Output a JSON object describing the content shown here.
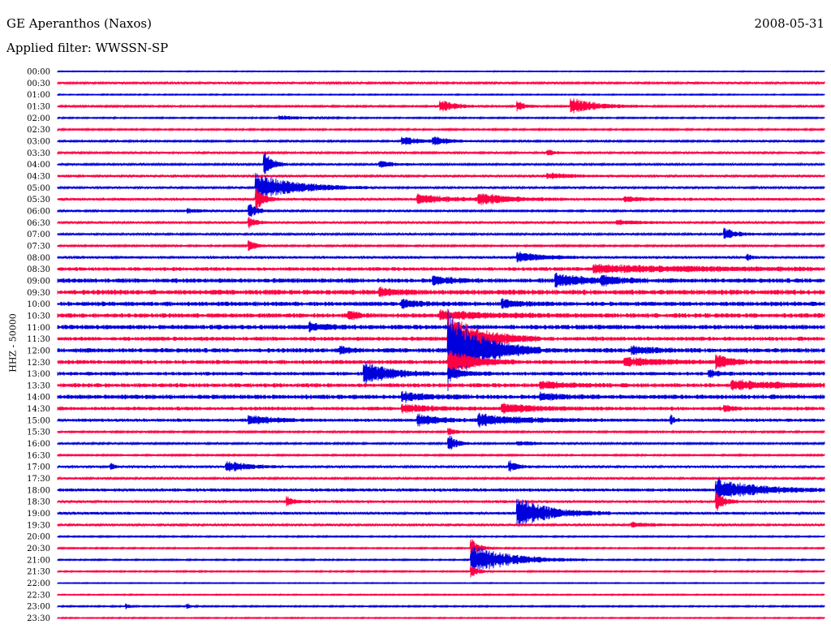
{
  "header": {
    "station": "GE Aperanthos (Naxos)",
    "date": "2008-05-31",
    "filter": "Applied filter: WWSSN-SP"
  },
  "chart_data": {
    "type": "line",
    "title": "GE Aperanthos (Naxos)",
    "ylabel": "HHZ - 50000",
    "xlabel": "",
    "trace_colors": [
      "#0000dd",
      "#ff0044"
    ],
    "row_labels": [
      "00:00",
      "00:30",
      "01:00",
      "01:30",
      "02:00",
      "02:30",
      "03:00",
      "03:30",
      "04:00",
      "04:30",
      "05:00",
      "05:30",
      "06:00",
      "06:30",
      "07:00",
      "07:30",
      "08:00",
      "08:30",
      "09:00",
      "09:30",
      "10:00",
      "10:30",
      "11:00",
      "11:30",
      "12:00",
      "12:30",
      "13:00",
      "13:30",
      "14:00",
      "14:30",
      "15:00",
      "15:30",
      "16:00",
      "16:30",
      "17:00",
      "17:30",
      "18:00",
      "18:30",
      "19:00",
      "19:30",
      "20:00",
      "20:30",
      "21:00",
      "21:30",
      "22:00",
      "22:30",
      "23:00",
      "23:30"
    ],
    "row_noise": [
      0.4,
      0.9,
      0.5,
      0.8,
      0.6,
      0.7,
      0.8,
      0.9,
      0.9,
      1.0,
      0.9,
      1.2,
      0.8,
      1.0,
      0.9,
      0.8,
      1.2,
      1.6,
      2.0,
      2.2,
      2.0,
      2.0,
      2.0,
      1.8,
      2.0,
      1.8,
      1.6,
      1.8,
      2.0,
      1.6,
      1.4,
      0.8,
      0.8,
      0.7,
      1.0,
      0.9,
      1.4,
      1.2,
      1.2,
      1.0,
      0.6,
      0.6,
      0.6,
      0.6,
      0.4,
      0.5,
      0.6,
      0.5
    ],
    "events": [
      {
        "row": 3,
        "pos": 0.5,
        "amp": 8,
        "dur": 0.02
      },
      {
        "row": 3,
        "pos": 0.6,
        "amp": 7,
        "dur": 0.01
      },
      {
        "row": 3,
        "pos": 0.67,
        "amp": 10,
        "dur": 0.035
      },
      {
        "row": 4,
        "pos": 0.29,
        "amp": 3,
        "dur": 0.03
      },
      {
        "row": 6,
        "pos": 0.45,
        "amp": 6,
        "dur": 0.02
      },
      {
        "row": 6,
        "pos": 0.49,
        "amp": 6,
        "dur": 0.02
      },
      {
        "row": 7,
        "pos": 0.64,
        "amp": 4,
        "dur": 0.01
      },
      {
        "row": 8,
        "pos": 0.27,
        "amp": 20,
        "dur": 0.01
      },
      {
        "row": 8,
        "pos": 0.42,
        "amp": 4,
        "dur": 0.02
      },
      {
        "row": 9,
        "pos": 0.64,
        "amp": 4,
        "dur": 0.03
      },
      {
        "row": 10,
        "pos": 0.26,
        "amp": 18,
        "dur": 0.05
      },
      {
        "row": 11,
        "pos": 0.26,
        "amp": 14,
        "dur": 0.01
      },
      {
        "row": 11,
        "pos": 0.47,
        "amp": 6,
        "dur": 0.04
      },
      {
        "row": 11,
        "pos": 0.55,
        "amp": 7,
        "dur": 0.04
      },
      {
        "row": 11,
        "pos": 0.74,
        "amp": 3,
        "dur": 0.03
      },
      {
        "row": 12,
        "pos": 0.25,
        "amp": 10,
        "dur": 0.01
      },
      {
        "row": 12,
        "pos": 0.17,
        "amp": 3,
        "dur": 0.02
      },
      {
        "row": 13,
        "pos": 0.25,
        "amp": 7,
        "dur": 0.01
      },
      {
        "row": 13,
        "pos": 0.73,
        "amp": 3,
        "dur": 0.03
      },
      {
        "row": 14,
        "pos": 0.87,
        "amp": 8,
        "dur": 0.015
      },
      {
        "row": 15,
        "pos": 0.25,
        "amp": 7,
        "dur": 0.01
      },
      {
        "row": 16,
        "pos": 0.6,
        "amp": 7,
        "dur": 0.03
      },
      {
        "row": 16,
        "pos": 0.9,
        "amp": 4,
        "dur": 0.005
      },
      {
        "row": 17,
        "pos": 0.7,
        "amp": 5,
        "dur": 0.15
      },
      {
        "row": 18,
        "pos": 0.49,
        "amp": 6,
        "dur": 0.02
      },
      {
        "row": 18,
        "pos": 0.65,
        "amp": 8,
        "dur": 0.04
      },
      {
        "row": 18,
        "pos": 0.71,
        "amp": 5,
        "dur": 0.02
      },
      {
        "row": 19,
        "pos": 0.42,
        "amp": 5,
        "dur": 0.02
      },
      {
        "row": 20,
        "pos": 0.45,
        "amp": 5,
        "dur": 0.02
      },
      {
        "row": 20,
        "pos": 0.58,
        "amp": 5,
        "dur": 0.02
      },
      {
        "row": 21,
        "pos": 0.38,
        "amp": 7,
        "dur": 0.01
      },
      {
        "row": 21,
        "pos": 0.5,
        "amp": 5,
        "dur": 0.06
      },
      {
        "row": 22,
        "pos": 0.33,
        "amp": 5,
        "dur": 0.02
      },
      {
        "row": 23,
        "pos": 0.51,
        "amp": 30,
        "dur": 0.04
      },
      {
        "row": 24,
        "pos": 0.51,
        "amp": 50,
        "dur": 0.04
      },
      {
        "row": 24,
        "pos": 0.37,
        "amp": 6,
        "dur": 0.01
      },
      {
        "row": 24,
        "pos": 0.75,
        "amp": 4,
        "dur": 0.03
      },
      {
        "row": 25,
        "pos": 0.51,
        "amp": 16,
        "dur": 0.03
      },
      {
        "row": 25,
        "pos": 0.74,
        "amp": 5,
        "dur": 0.05
      },
      {
        "row": 25,
        "pos": 0.86,
        "amp": 8,
        "dur": 0.02
      },
      {
        "row": 26,
        "pos": 0.4,
        "amp": 18,
        "dur": 0.03
      },
      {
        "row": 26,
        "pos": 0.51,
        "amp": 8,
        "dur": 0.02
      },
      {
        "row": 26,
        "pos": 0.85,
        "amp": 5,
        "dur": 0.01
      },
      {
        "row": 27,
        "pos": 0.63,
        "amp": 5,
        "dur": 0.03
      },
      {
        "row": 27,
        "pos": 0.88,
        "amp": 6,
        "dur": 0.06
      },
      {
        "row": 28,
        "pos": 0.45,
        "amp": 5,
        "dur": 0.03
      },
      {
        "row": 28,
        "pos": 0.63,
        "amp": 4,
        "dur": 0.03
      },
      {
        "row": 29,
        "pos": 0.45,
        "amp": 5,
        "dur": 0.04
      },
      {
        "row": 29,
        "pos": 0.58,
        "amp": 6,
        "dur": 0.04
      },
      {
        "row": 29,
        "pos": 0.87,
        "amp": 4,
        "dur": 0.01
      },
      {
        "row": 30,
        "pos": 0.25,
        "amp": 6,
        "dur": 0.03
      },
      {
        "row": 30,
        "pos": 0.47,
        "amp": 7,
        "dur": 0.03
      },
      {
        "row": 30,
        "pos": 0.55,
        "amp": 7,
        "dur": 0.06
      },
      {
        "row": 30,
        "pos": 0.8,
        "amp": 6,
        "dur": 0.005
      },
      {
        "row": 31,
        "pos": 0.51,
        "amp": 5,
        "dur": 0.01
      },
      {
        "row": 32,
        "pos": 0.51,
        "amp": 12,
        "dur": 0.01
      },
      {
        "row": 32,
        "pos": 0.6,
        "amp": 3,
        "dur": 0.03
      },
      {
        "row": 34,
        "pos": 0.07,
        "amp": 5,
        "dur": 0.005
      },
      {
        "row": 34,
        "pos": 0.22,
        "amp": 7,
        "dur": 0.03
      },
      {
        "row": 34,
        "pos": 0.59,
        "amp": 8,
        "dur": 0.01
      },
      {
        "row": 36,
        "pos": 0.86,
        "amp": 14,
        "dur": 0.05
      },
      {
        "row": 37,
        "pos": 0.3,
        "amp": 6,
        "dur": 0.01
      },
      {
        "row": 37,
        "pos": 0.86,
        "amp": 12,
        "dur": 0.01
      },
      {
        "row": 38,
        "pos": 0.6,
        "amp": 20,
        "dur": 0.04
      },
      {
        "row": 39,
        "pos": 0.75,
        "amp": 3,
        "dur": 0.03
      },
      {
        "row": 41,
        "pos": 0.54,
        "amp": 12,
        "dur": 0.01
      },
      {
        "row": 42,
        "pos": 0.54,
        "amp": 18,
        "dur": 0.05
      },
      {
        "row": 43,
        "pos": 0.54,
        "amp": 8,
        "dur": 0.01
      },
      {
        "row": 46,
        "pos": 0.09,
        "amp": 3,
        "dur": 0.005
      },
      {
        "row": 46,
        "pos": 0.17,
        "amp": 3,
        "dur": 0.005
      }
    ]
  }
}
